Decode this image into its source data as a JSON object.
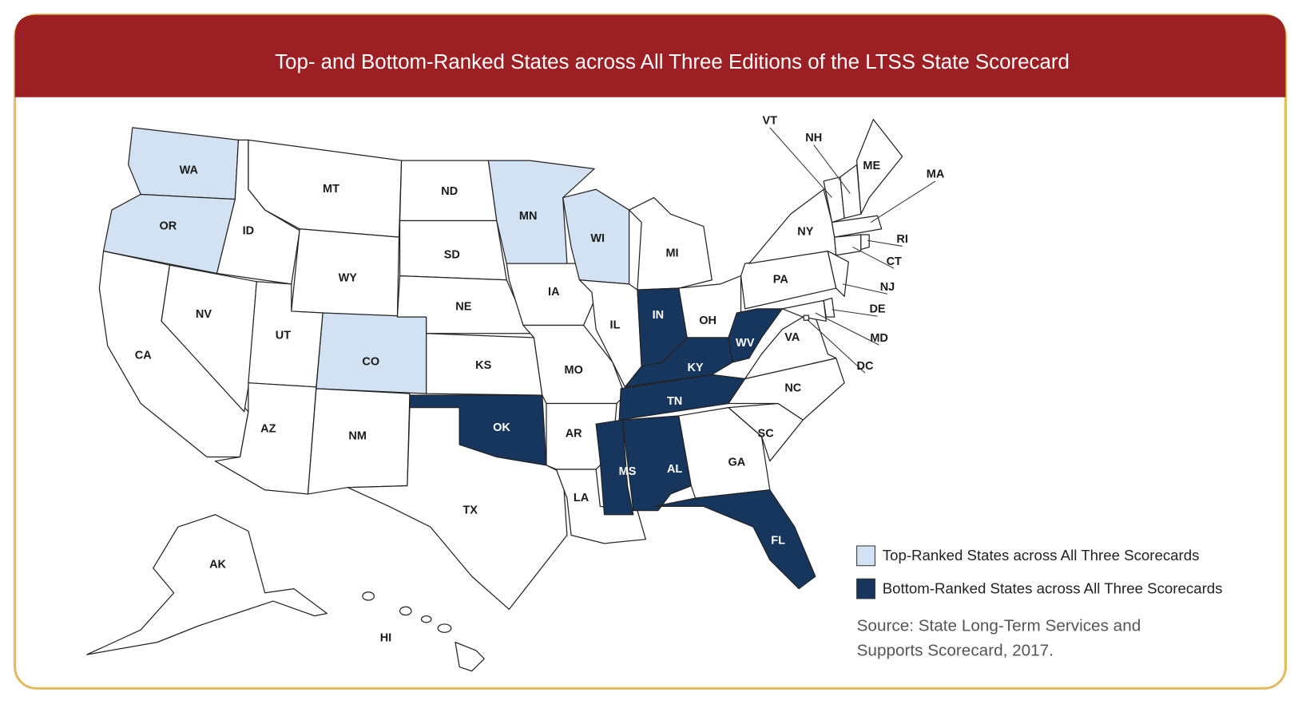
{
  "header": {
    "title": "Top- and Bottom-Ranked States across All Three Editions of the LTSS State Scorecard"
  },
  "legend": [
    {
      "category": "top",
      "label": "Top-Ranked States across All Three Scorecards",
      "color": "#d3e2f2"
    },
    {
      "category": "bottom",
      "label": "Bottom-Ranked States across All Three Scorecards",
      "color": "#17365d"
    }
  ],
  "source": [
    "Source: State Long-Term Services and",
    "Supports Scorecard, 2017."
  ],
  "states": [
    {
      "abbr": "WA",
      "ranking": "top"
    },
    {
      "abbr": "OR",
      "ranking": "top"
    },
    {
      "abbr": "CA",
      "ranking": "none"
    },
    {
      "abbr": "NV",
      "ranking": "none"
    },
    {
      "abbr": "ID",
      "ranking": "none"
    },
    {
      "abbr": "MT",
      "ranking": "none"
    },
    {
      "abbr": "WY",
      "ranking": "none"
    },
    {
      "abbr": "UT",
      "ranking": "none"
    },
    {
      "abbr": "CO",
      "ranking": "top"
    },
    {
      "abbr": "AZ",
      "ranking": "none"
    },
    {
      "abbr": "NM",
      "ranking": "none"
    },
    {
      "abbr": "ND",
      "ranking": "none"
    },
    {
      "abbr": "SD",
      "ranking": "none"
    },
    {
      "abbr": "NE",
      "ranking": "none"
    },
    {
      "abbr": "KS",
      "ranking": "none"
    },
    {
      "abbr": "OK",
      "ranking": "bottom"
    },
    {
      "abbr": "TX",
      "ranking": "none"
    },
    {
      "abbr": "MN",
      "ranking": "top"
    },
    {
      "abbr": "IA",
      "ranking": "none"
    },
    {
      "abbr": "MO",
      "ranking": "none"
    },
    {
      "abbr": "AR",
      "ranking": "none"
    },
    {
      "abbr": "LA",
      "ranking": "none"
    },
    {
      "abbr": "WI",
      "ranking": "top"
    },
    {
      "abbr": "IL",
      "ranking": "none"
    },
    {
      "abbr": "MI",
      "ranking": "none"
    },
    {
      "abbr": "IN",
      "ranking": "bottom"
    },
    {
      "abbr": "OH",
      "ranking": "none"
    },
    {
      "abbr": "KY",
      "ranking": "bottom"
    },
    {
      "abbr": "TN",
      "ranking": "bottom"
    },
    {
      "abbr": "MS",
      "ranking": "bottom"
    },
    {
      "abbr": "AL",
      "ranking": "bottom"
    },
    {
      "abbr": "GA",
      "ranking": "none"
    },
    {
      "abbr": "FL",
      "ranking": "bottom"
    },
    {
      "abbr": "SC",
      "ranking": "none"
    },
    {
      "abbr": "NC",
      "ranking": "none"
    },
    {
      "abbr": "VA",
      "ranking": "none"
    },
    {
      "abbr": "WV",
      "ranking": "bottom"
    },
    {
      "abbr": "PA",
      "ranking": "none"
    },
    {
      "abbr": "NY",
      "ranking": "none"
    },
    {
      "abbr": "ME",
      "ranking": "none"
    },
    {
      "abbr": "VT",
      "ranking": "none"
    },
    {
      "abbr": "NH",
      "ranking": "none"
    },
    {
      "abbr": "MA",
      "ranking": "none"
    },
    {
      "abbr": "CT",
      "ranking": "none"
    },
    {
      "abbr": "RI",
      "ranking": "none"
    },
    {
      "abbr": "NJ",
      "ranking": "none"
    },
    {
      "abbr": "DE",
      "ranking": "none"
    },
    {
      "abbr": "MD",
      "ranking": "none"
    },
    {
      "abbr": "DC",
      "ranking": "none"
    },
    {
      "abbr": "AK",
      "ranking": "none"
    },
    {
      "abbr": "HI",
      "ranking": "none"
    }
  ]
}
